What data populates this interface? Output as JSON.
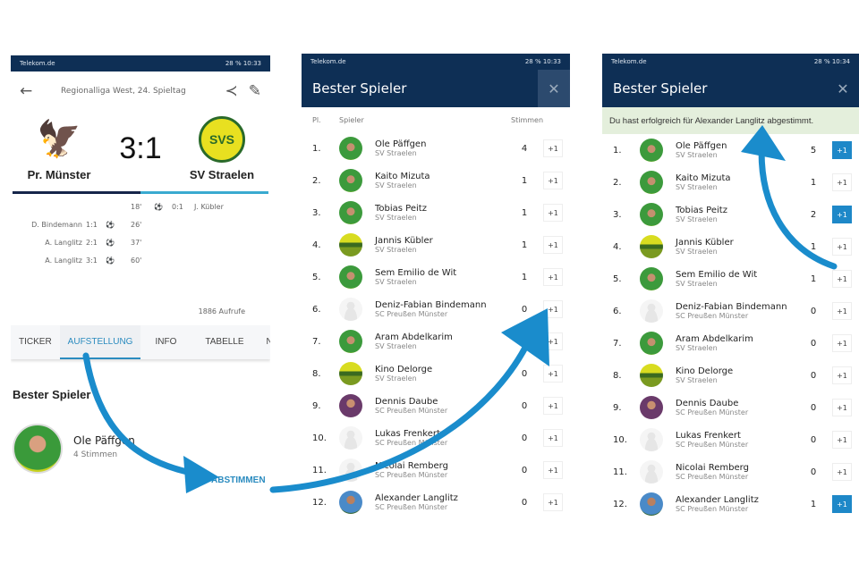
{
  "accent": "#1e88c8",
  "header_color": "#0e2f55",
  "screen1": {
    "status": {
      "carrier": "Telekom.de",
      "right": "28 % 10:33"
    },
    "league": "Regionalliga West, 24. Spieltag",
    "icons": [
      "back-arrow-icon",
      "share-icon",
      "edit-pencil-icon"
    ],
    "home": "Pr. Münster",
    "away": "SV Straelen",
    "score": "3:1",
    "goals": [
      {
        "side": "away",
        "minute": "18'",
        "score": "0:1",
        "player": "J. Kübler"
      },
      {
        "side": "home",
        "minute": "26'",
        "score": "1:1",
        "player": "D. Bindemann"
      },
      {
        "side": "home",
        "minute": "37'",
        "score": "2:1",
        "player": "A. Langlitz"
      },
      {
        "side": "home",
        "minute": "60'",
        "score": "3:1",
        "player": "A. Langlitz"
      }
    ],
    "views": "1886 Aufrufe",
    "tabs": [
      "TICKER",
      "AUFSTELLUNG",
      "INFO",
      "TABELLE",
      "NEWS"
    ],
    "active_tab": "AUFSTELLUNG",
    "best_title": "Bester Spieler",
    "best_name": "Ole Päffgen",
    "best_votes": "4 Stimmen",
    "vote_button": "ABSTIMMEN"
  },
  "screen2": {
    "status": {
      "carrier": "Telekom.de",
      "right": "28 % 10:33"
    },
    "title": "Bester Spieler",
    "col_pl": "Pl.",
    "col_player": "Spieler",
    "col_votes": "Stimmen",
    "plus": "+1",
    "votes": [
      4,
      1,
      1,
      1,
      1,
      0,
      0,
      0,
      0,
      0,
      0,
      0
    ],
    "active": []
  },
  "screen3": {
    "status": {
      "carrier": "Telekom.de",
      "right": "28 % 10:34"
    },
    "title": "Bester Spieler",
    "message": "Du hast erfolgreich für Alexander Langlitz abgestimmt.",
    "plus": "+1",
    "votes": [
      5,
      1,
      2,
      1,
      1,
      0,
      0,
      0,
      0,
      0,
      0,
      1
    ],
    "active": [
      1,
      3,
      12
    ]
  },
  "players": [
    {
      "rank": "1.",
      "name": "Ole Päffgen",
      "club": "SV Straelen",
      "avatar": "green"
    },
    {
      "rank": "2.",
      "name": "Kaito Mizuta",
      "club": "SV Straelen",
      "avatar": "green"
    },
    {
      "rank": "3.",
      "name": "Tobias Peitz",
      "club": "SV Straelen",
      "avatar": "green"
    },
    {
      "rank": "4.",
      "name": "Jannis Kübler",
      "club": "SV Straelen",
      "avatar": "yellow"
    },
    {
      "rank": "5.",
      "name": "Sem Emilio de Wit",
      "club": "SV Straelen",
      "avatar": "green"
    },
    {
      "rank": "6.",
      "name": "Deniz-Fabian Bindemann",
      "club": "SC Preußen Münster",
      "avatar": "placeholder"
    },
    {
      "rank": "7.",
      "name": "Aram Abdelkarim",
      "club": "SV Straelen",
      "avatar": "green"
    },
    {
      "rank": "8.",
      "name": "Kino Delorge",
      "club": "SV Straelen",
      "avatar": "yellow"
    },
    {
      "rank": "9.",
      "name": "Dennis Daube",
      "club": "SC Preußen Münster",
      "avatar": "purple"
    },
    {
      "rank": "10.",
      "name": "Lukas Frenkert",
      "club": "SC Preußen Münster",
      "avatar": "placeholder"
    },
    {
      "rank": "11.",
      "name": "Nicolai Remberg",
      "club": "SC Preußen Münster",
      "avatar": "placeholder"
    },
    {
      "rank": "12.",
      "name": "Alexander Langlitz",
      "club": "SC Preußen Münster",
      "avatar": "blue"
    }
  ]
}
